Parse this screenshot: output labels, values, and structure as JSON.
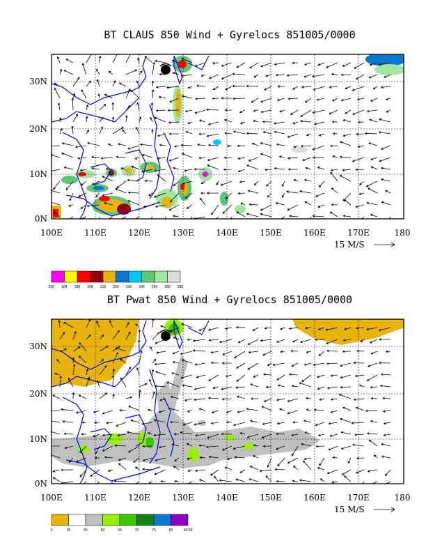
{
  "panels": [
    {
      "id": "top",
      "title": "BT CLAUS 850 Wind + Gyrelocs 851005/0000",
      "lat_labels": [
        "30N",
        "20N",
        "10N",
        "0N"
      ],
      "lon_labels": [
        "100E",
        "110E",
        "120E",
        "130E",
        "140E",
        "150E",
        "160E",
        "170E",
        "180"
      ],
      "vector_scale_label": "15 M/S",
      "legend": {
        "colors": [
          "#ff00ff",
          "#ffff00",
          "#ff0000",
          "#990000",
          "#e8b40a",
          "#0a78d2",
          "#00c8ff",
          "#5ac878",
          "#a0e6a0",
          "#dcdcdc"
        ],
        "labels": [
          "200",
          "184",
          "200",
          "208",
          "216",
          "230",
          "242",
          "248",
          "264",
          "280",
          "288"
        ]
      }
    },
    {
      "id": "bottom",
      "title": "BT Pwat 850 Wind + Gyrelocs 851005/0000",
      "lat_labels": [
        "30N",
        "20N",
        "10N",
        "0N"
      ],
      "lon_labels": [
        "100E",
        "110E",
        "120E",
        "130E",
        "140E",
        "150E",
        "160E",
        "170E",
        "180"
      ],
      "vector_scale_label": "15 M/S",
      "legend": {
        "colors": [
          "#e8b40a",
          "#ffffff",
          "#c0c0c0",
          "#96f000",
          "#3cc800",
          "#148214",
          "#0a78d2",
          "#8c00c8"
        ],
        "labels": [
          "0",
          "35",
          "55",
          "60",
          "65",
          "70",
          "75",
          "80",
          "69.09"
        ]
      }
    }
  ],
  "colors": {
    "coast": "#0000ff",
    "frame": "#000000",
    "arrow": "#000000"
  }
}
